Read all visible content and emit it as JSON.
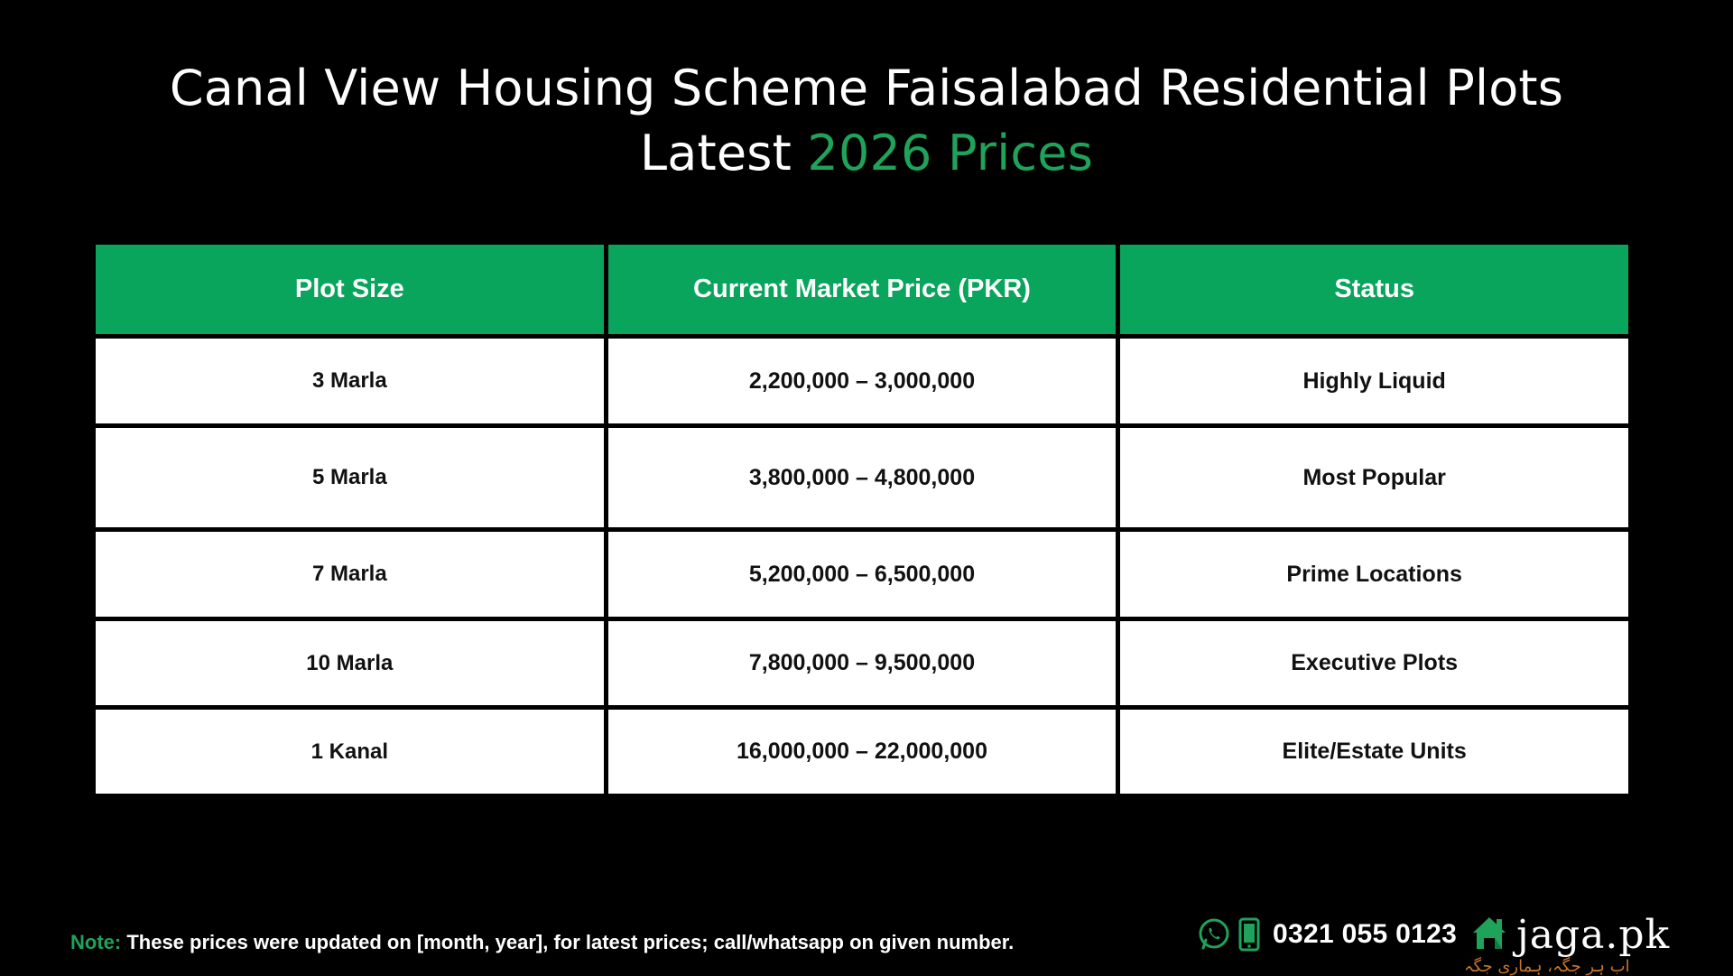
{
  "title": {
    "line1": "Canal View Housing Scheme Faisalabad Residential Plots",
    "line2_prefix": "Latest ",
    "line2_accent": "2026 Prices"
  },
  "table": {
    "headers": [
      "Plot Size",
      "Current Market Price (PKR)",
      "Status"
    ],
    "rows": [
      {
        "size": "3 Marla",
        "price": "2,200,000 – 3,000,000",
        "status": "Highly Liquid"
      },
      {
        "size": "5 Marla",
        "price": "3,800,000 – 4,800,000",
        "status": "Most Popular"
      },
      {
        "size": "7 Marla",
        "price": "5,200,000 – 6,500,000",
        "status": "Prime Locations"
      },
      {
        "size": "10 Marla",
        "price": "7,800,000 – 9,500,000",
        "status": "Executive Plots"
      },
      {
        "size": "1 Kanal",
        "price": "16,000,000 – 22,000,000",
        "status": "Elite/Estate Units"
      }
    ]
  },
  "note": {
    "label": "Note:",
    "text": " These prices were updated on [month, year], for latest prices; call/whatsapp on given number."
  },
  "contact": {
    "phone": "0321 055 0123",
    "icons": [
      "whatsapp-icon",
      "mobile-phone-icon"
    ]
  },
  "brand": {
    "name": "jaga.pk",
    "tagline": "اب ہر جگہ، ہماری جگہ",
    "logo_icon": "house-icon"
  },
  "colors": {
    "background": "#000000",
    "accent_green": "#09a55c",
    "title_accent": "#1fa25a",
    "tagline": "#c8752a"
  }
}
